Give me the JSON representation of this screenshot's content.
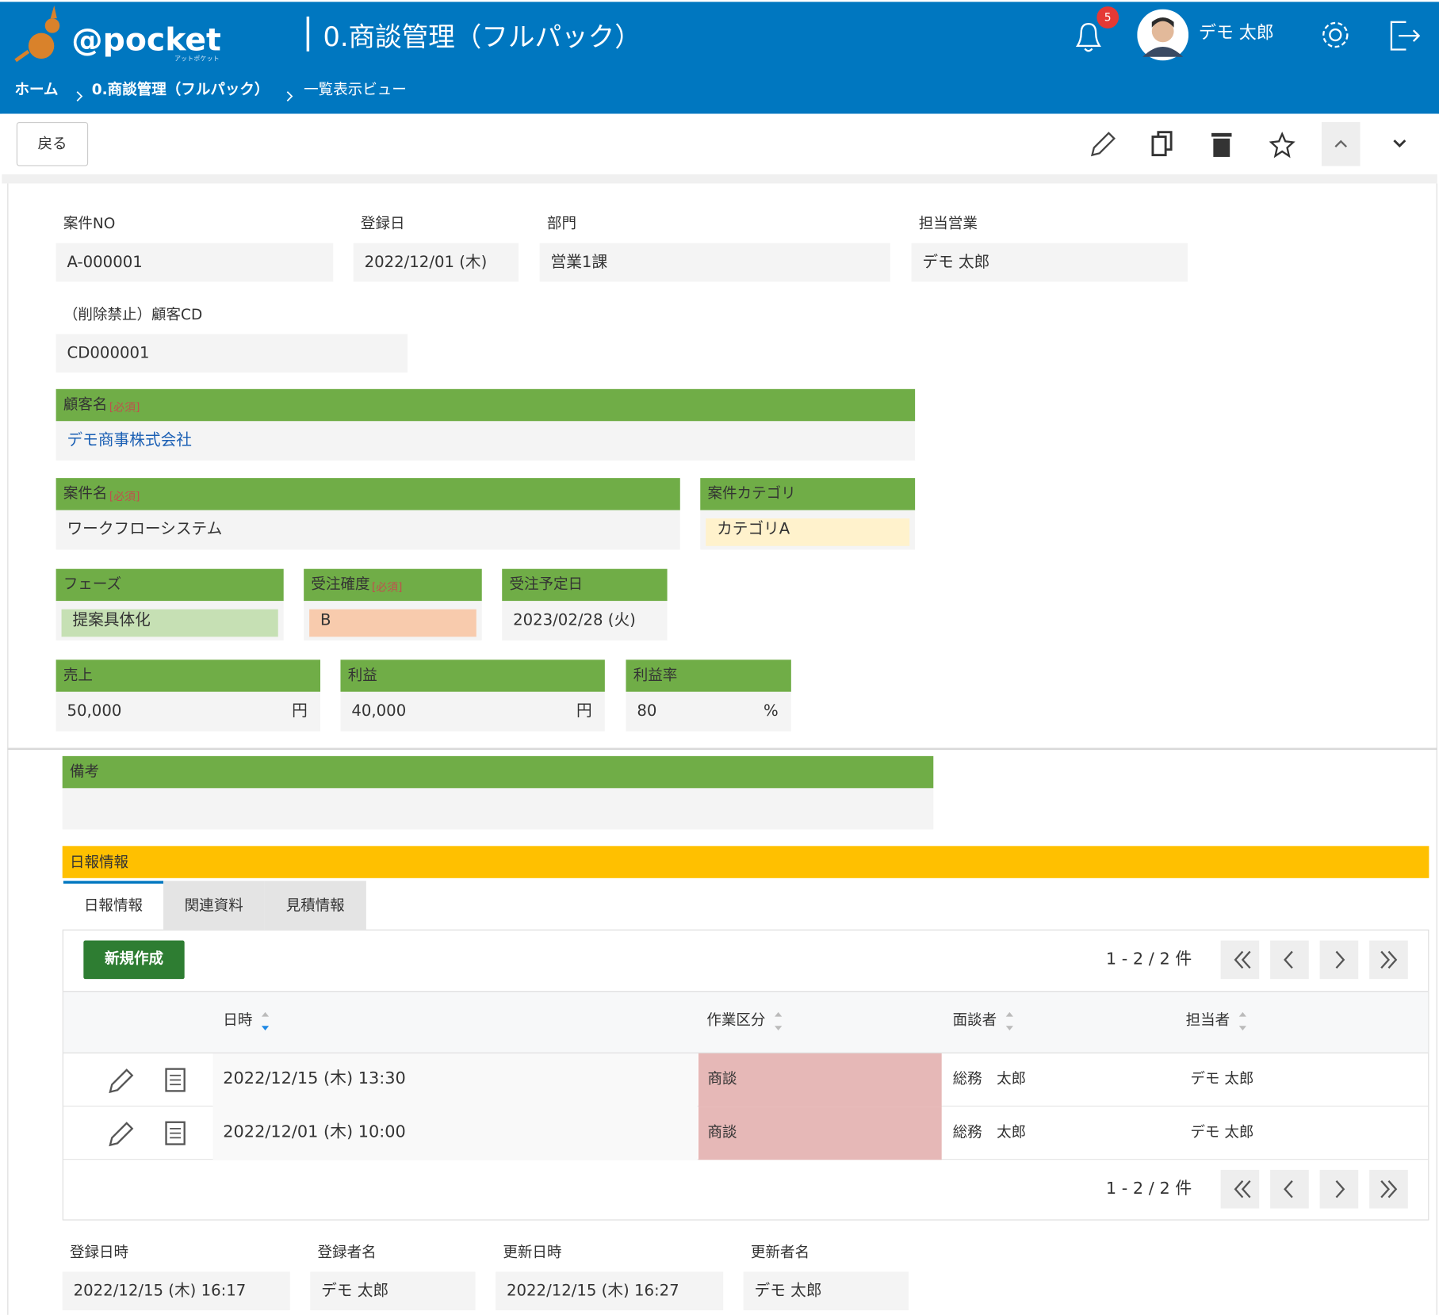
{
  "header": {
    "logo": "@pocket",
    "logo_sub": "アットポケット",
    "title": "0.商談管理（フルパック）",
    "notifications": "5",
    "user": "デモ 太郎"
  },
  "breadcrumbs": [
    "ホーム",
    "0.商談管理（フルパック）",
    "一覧表示ビュー"
  ],
  "toolbar": {
    "back": "戻る"
  },
  "fields": [
    {
      "label": "案件NO",
      "value": "A-000001"
    },
    {
      "label": "登録日",
      "value": "2022/12/01 (木)"
    },
    {
      "label": "部門",
      "value": "営業1課"
    },
    {
      "label": "担当営業",
      "value": "デモ 太郎"
    },
    {
      "label": "（削除禁止）顧客CD",
      "value": "CD000001"
    },
    {
      "label": "顧客名",
      "required": "[必須]",
      "value": "デモ商事株式会社"
    },
    {
      "label": "案件名",
      "required": "[必須]",
      "value": "ワークフローシステム"
    },
    {
      "label": "案件カテゴリ",
      "value": "カテゴリA"
    },
    {
      "label": "フェーズ",
      "value": "提案具体化"
    },
    {
      "label": "受注確度",
      "required": "[必須]",
      "value": "B"
    },
    {
      "label": "受注予定日",
      "value": "2023/02/28 (火)"
    },
    {
      "label": "売上",
      "value": "50,000",
      "unit": "円"
    },
    {
      "label": "利益",
      "value": "40,000",
      "unit": "円"
    },
    {
      "label": "利益率",
      "value": "80",
      "unit": "%"
    },
    {
      "label": "備考"
    }
  ],
  "report_section": {
    "title": "日報情報",
    "tabs": [
      "日報情報",
      "関連資料",
      "見積情報"
    ],
    "new_button": "新規作成",
    "pagination": "1 - 2 / 2 件",
    "columns": [
      "日時",
      "作業区分",
      "面談者",
      "担当者"
    ],
    "rows": [
      [
        "2022/12/15 (木) 13:30",
        "商談",
        "総務　太郎",
        "デモ 太郎"
      ],
      [
        "2022/12/01 (木) 10:00",
        "商談",
        "総務　太郎",
        "デモ 太郎"
      ]
    ]
  },
  "footer_fields": [
    {
      "label": "登録日時",
      "value": "2022/12/15 (木) 16:17"
    },
    {
      "label": "登録者名",
      "value": "デモ 太郎"
    },
    {
      "label": "更新日時",
      "value": "2022/12/15 (木) 16:27"
    },
    {
      "label": "更新者名",
      "value": "デモ 太郎"
    }
  ]
}
